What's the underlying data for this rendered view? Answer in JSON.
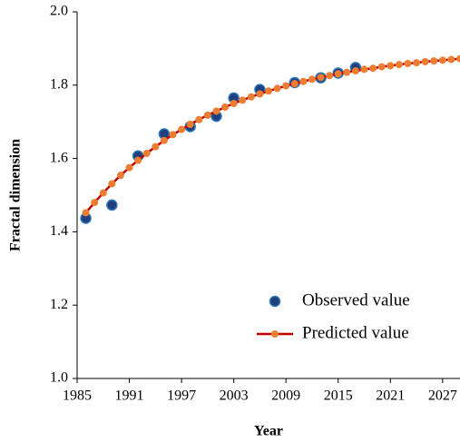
{
  "chart_data": {
    "type": "scatter-line",
    "xlabel": "Year",
    "ylabel": "Fractal dimension",
    "xlim": [
      1985,
      2029
    ],
    "xticks": [
      1985,
      1991,
      1997,
      2003,
      2009,
      2015,
      2021,
      2027
    ],
    "ylim": [
      1.0,
      2.0
    ],
    "yticks": [
      {
        "value": 1.0,
        "label": "1.0"
      },
      1.2,
      1.4,
      1.6,
      1.8,
      {
        "value": 2.0,
        "label": "2.0"
      }
    ],
    "legend": "lower right",
    "series": [
      {
        "name": "Observed value",
        "type": "scatter",
        "color": "#1f3f7f",
        "edge_color": "#2e75b6",
        "x": [
          1986,
          1989,
          1992,
          1995,
          1998,
          2001,
          2003,
          2006,
          2010,
          2013,
          2015,
          2017
        ],
        "values": [
          1.437,
          1.473,
          1.607,
          1.667,
          1.687,
          1.715,
          1.765,
          1.788,
          1.807,
          1.82,
          1.833,
          1.848
        ]
      },
      {
        "name": "Predicted value",
        "type": "line",
        "color": "#c00000",
        "marker_color": "#ed7d31",
        "x": [
          1986,
          1987,
          1988,
          1989,
          1990,
          1991,
          1992,
          1993,
          1994,
          1995,
          1996,
          1997,
          1998,
          1999,
          2000,
          2001,
          2002,
          2003,
          2004,
          2005,
          2006,
          2007,
          2008,
          2009,
          2010,
          2011,
          2012,
          2013,
          2014,
          2015,
          2016,
          2017,
          2018,
          2019,
          2020,
          2021,
          2022,
          2023,
          2024,
          2025,
          2026,
          2027,
          2028,
          2029
        ],
        "values": [
          1.452,
          1.48,
          1.506,
          1.531,
          1.554,
          1.575,
          1.595,
          1.614,
          1.632,
          1.649,
          1.665,
          1.679,
          1.693,
          1.706,
          1.718,
          1.729,
          1.74,
          1.75,
          1.759,
          1.768,
          1.776,
          1.784,
          1.791,
          1.798,
          1.804,
          1.81,
          1.816,
          1.821,
          1.826,
          1.831,
          1.835,
          1.839,
          1.843,
          1.846,
          1.85,
          1.853,
          1.856,
          1.859,
          1.861,
          1.864,
          1.866,
          1.868,
          1.87,
          1.872
        ]
      }
    ]
  }
}
